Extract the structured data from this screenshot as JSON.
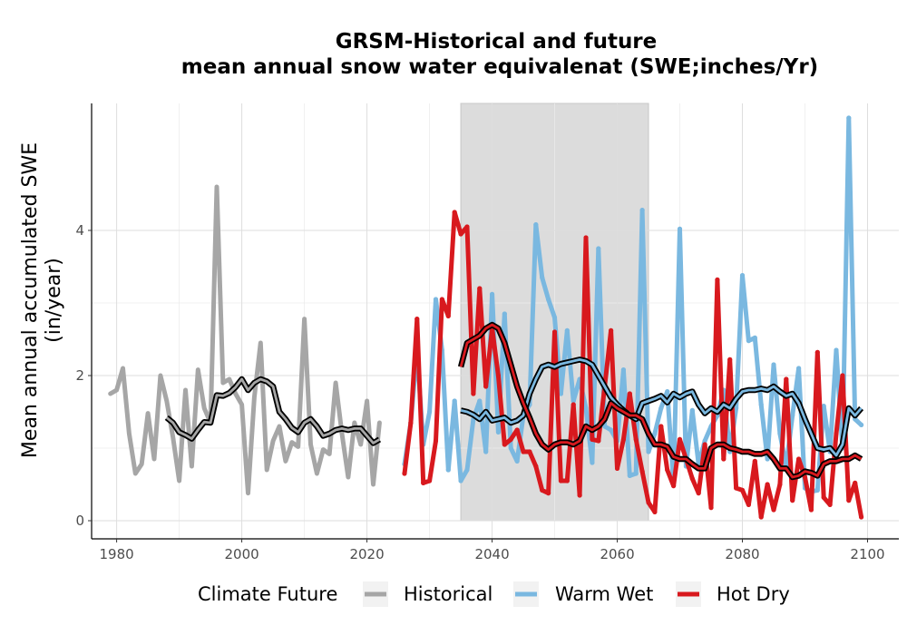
{
  "chart_data": {
    "type": "line",
    "title": "GRSM-Historical and future",
    "subtitle": "mean annual snow water equivalenat (SWE;inches/Yr)",
    "ylabel_line1": "Mean annual accumulated SWE",
    "ylabel_line2": "(in/year)",
    "xlabel": "",
    "xlim": [
      1976,
      2105
    ],
    "ylim": [
      -0.25,
      5.75
    ],
    "x_ticks": [
      1980,
      2000,
      2020,
      2040,
      2060,
      2080,
      2100
    ],
    "y_ticks": [
      0,
      2,
      4
    ],
    "grid": true,
    "shaded_period": [
      2035,
      2065
    ],
    "legend": {
      "title": "Climate Future",
      "position": "bottom",
      "entries": [
        "Historical",
        "Warm Wet",
        "Hot Dry"
      ]
    },
    "series": [
      {
        "name": "Historical",
        "color": "#a6a6a6",
        "x": [
          1979,
          1980,
          1981,
          1982,
          1983,
          1984,
          1985,
          1986,
          1987,
          1988,
          1989,
          1990,
          1991,
          1992,
          1993,
          1994,
          1995,
          1996,
          1997,
          1998,
          1999,
          2000,
          2001,
          2002,
          2003,
          2004,
          2005,
          2006,
          2007,
          2008,
          2009,
          2010,
          2011,
          2012,
          2013,
          2014,
          2015,
          2016,
          2017,
          2018,
          2019,
          2020,
          2021,
          2022
        ],
        "y": [
          1.75,
          1.8,
          2.1,
          1.2,
          0.65,
          0.78,
          1.48,
          0.85,
          2.0,
          1.65,
          1.15,
          0.55,
          1.8,
          0.75,
          2.08,
          1.55,
          1.35,
          4.6,
          1.9,
          1.95,
          1.75,
          1.6,
          0.38,
          1.7,
          2.45,
          0.7,
          1.1,
          1.3,
          0.82,
          1.08,
          1.02,
          2.78,
          1.05,
          0.65,
          0.98,
          0.92,
          1.9,
          1.2,
          0.6,
          1.35,
          1.05,
          1.65,
          0.5,
          1.35
        ],
        "moving_avg": {
          "x": [
            1988,
            1989,
            1990,
            1991,
            1992,
            1993,
            1994,
            1995,
            1996,
            1997,
            1998,
            1999,
            2000,
            2001,
            2002,
            2003,
            2004,
            2005,
            2006,
            2007,
            2008,
            2009,
            2010,
            2011,
            2012,
            2013,
            2014,
            2015,
            2016,
            2017,
            2018,
            2019,
            2020,
            2021,
            2022
          ],
          "y": [
            1.42,
            1.35,
            1.22,
            1.18,
            1.13,
            1.25,
            1.36,
            1.35,
            1.73,
            1.72,
            1.76,
            1.84,
            1.95,
            1.8,
            1.9,
            1.95,
            1.92,
            1.85,
            1.5,
            1.4,
            1.28,
            1.22,
            1.35,
            1.4,
            1.3,
            1.17,
            1.2,
            1.25,
            1.27,
            1.25,
            1.27,
            1.27,
            1.17,
            1.07,
            1.12
          ]
        }
      },
      {
        "name": "Warm Wet",
        "color": "#7ab8e0",
        "x": [
          2026,
          2027,
          2028,
          2029,
          2030,
          2031,
          2032,
          2033,
          2034,
          2035,
          2036,
          2037,
          2038,
          2039,
          2040,
          2041,
          2042,
          2043,
          2044,
          2045,
          2046,
          2047,
          2048,
          2049,
          2050,
          2051,
          2052,
          2053,
          2054,
          2055,
          2056,
          2057,
          2058,
          2059,
          2060,
          2061,
          2062,
          2063,
          2064,
          2065,
          2066,
          2067,
          2068,
          2069,
          2070,
          2071,
          2072,
          2073,
          2074,
          2075,
          2076,
          2077,
          2078,
          2079,
          2080,
          2081,
          2082,
          2083,
          2084,
          2085,
          2086,
          2087,
          2088,
          2089,
          2090,
          2091,
          2092,
          2093,
          2094,
          2095,
          2096,
          2097,
          2098,
          2099
        ],
        "y": [
          0.78,
          1.35,
          2.35,
          1.05,
          1.5,
          3.05,
          2.35,
          0.7,
          1.65,
          0.55,
          0.7,
          1.4,
          1.65,
          0.95,
          3.12,
          1.22,
          2.85,
          1.0,
          0.82,
          1.45,
          1.6,
          4.08,
          3.35,
          3.05,
          2.8,
          1.75,
          2.62,
          1.65,
          1.95,
          1.55,
          0.8,
          3.75,
          1.3,
          1.25,
          1.1,
          2.08,
          0.62,
          0.65,
          4.28,
          0.95,
          1.2,
          1.55,
          1.78,
          0.52,
          4.02,
          0.75,
          1.52,
          0.78,
          1.1,
          1.3,
          1.45,
          1.8,
          0.95,
          1.55,
          3.38,
          2.48,
          2.52,
          1.6,
          0.85,
          2.15,
          1.2,
          0.75,
          1.45,
          2.1,
          0.45,
          0.4,
          0.42,
          1.58,
          0.95,
          2.35,
          1.0,
          5.55,
          1.4,
          1.32
        ],
        "moving_avg": {
          "x": [
            2035,
            2036,
            2037,
            2038,
            2039,
            2040,
            2041,
            2042,
            2043,
            2044,
            2045,
            2046,
            2047,
            2048,
            2049,
            2050,
            2051,
            2052,
            2053,
            2054,
            2055,
            2056,
            2057,
            2058,
            2059,
            2060,
            2061,
            2062,
            2063,
            2064,
            2065,
            2066,
            2067,
            2068,
            2069,
            2070,
            2071,
            2072,
            2073,
            2074,
            2075,
            2076,
            2077,
            2078,
            2079,
            2080,
            2081,
            2082,
            2083,
            2084,
            2085,
            2086,
            2087,
            2088,
            2089,
            2090,
            2091,
            2092,
            2093,
            2094,
            2095,
            2096,
            2097,
            2098,
            2099
          ],
          "y": [
            1.52,
            1.5,
            1.46,
            1.4,
            1.5,
            1.38,
            1.4,
            1.42,
            1.35,
            1.38,
            1.45,
            1.75,
            1.95,
            2.12,
            2.15,
            2.12,
            2.16,
            2.18,
            2.2,
            2.22,
            2.2,
            2.15,
            2.0,
            1.85,
            1.7,
            1.6,
            1.52,
            1.45,
            1.4,
            1.62,
            1.65,
            1.68,
            1.72,
            1.63,
            1.75,
            1.7,
            1.75,
            1.78,
            1.6,
            1.48,
            1.55,
            1.5,
            1.6,
            1.55,
            1.68,
            1.78,
            1.8,
            1.8,
            1.82,
            1.8,
            1.85,
            1.78,
            1.72,
            1.75,
            1.62,
            1.4,
            1.2,
            1.0,
            0.98,
            1.0,
            0.9,
            1.05,
            1.55,
            1.45,
            1.55
          ]
        }
      },
      {
        "name": "Hot Dry",
        "color": "#d8191e",
        "x": [
          2026,
          2027,
          2028,
          2029,
          2030,
          2031,
          2032,
          2033,
          2034,
          2035,
          2036,
          2037,
          2038,
          2039,
          2040,
          2041,
          2042,
          2043,
          2044,
          2045,
          2046,
          2047,
          2048,
          2049,
          2050,
          2051,
          2052,
          2053,
          2054,
          2055,
          2056,
          2057,
          2058,
          2059,
          2060,
          2061,
          2062,
          2063,
          2064,
          2065,
          2066,
          2067,
          2068,
          2069,
          2070,
          2071,
          2072,
          2073,
          2074,
          2075,
          2076,
          2077,
          2078,
          2079,
          2080,
          2081,
          2082,
          2083,
          2084,
          2085,
          2086,
          2087,
          2088,
          2089,
          2090,
          2091,
          2092,
          2093,
          2094,
          2095,
          2096,
          2097,
          2098,
          2099
        ],
        "y": [
          0.65,
          1.35,
          2.78,
          0.52,
          0.55,
          1.1,
          3.05,
          2.82,
          4.25,
          3.95,
          4.05,
          1.75,
          3.2,
          1.85,
          2.65,
          2.0,
          1.05,
          1.12,
          1.25,
          0.95,
          0.95,
          0.75,
          0.42,
          0.38,
          2.6,
          0.55,
          0.55,
          1.6,
          0.35,
          3.9,
          1.12,
          1.1,
          1.85,
          2.62,
          0.72,
          1.12,
          1.75,
          1.12,
          0.68,
          0.25,
          0.12,
          1.3,
          0.7,
          0.48,
          1.12,
          0.85,
          0.58,
          0.38,
          1.05,
          0.18,
          3.32,
          0.85,
          2.22,
          0.45,
          0.42,
          0.22,
          0.82,
          0.05,
          0.5,
          0.15,
          0.5,
          1.95,
          0.28,
          0.85,
          0.6,
          0.15,
          2.32,
          0.32,
          0.22,
          1.2,
          2.0,
          0.28,
          0.52,
          0.05
        ],
        "moving_avg": {
          "x": [
            2035,
            2036,
            2037,
            2038,
            2039,
            2040,
            2041,
            2042,
            2043,
            2044,
            2045,
            2046,
            2047,
            2048,
            2049,
            2050,
            2051,
            2052,
            2053,
            2054,
            2055,
            2056,
            2057,
            2058,
            2059,
            2060,
            2061,
            2062,
            2063,
            2064,
            2065,
            2066,
            2067,
            2068,
            2069,
            2070,
            2071,
            2072,
            2073,
            2074,
            2075,
            2076,
            2077,
            2078,
            2079,
            2080,
            2081,
            2082,
            2083,
            2084,
            2085,
            2086,
            2087,
            2088,
            2089,
            2090,
            2091,
            2092,
            2093,
            2094,
            2095,
            2096,
            2097,
            2098,
            2099
          ],
          "y": [
            2.12,
            2.45,
            2.5,
            2.55,
            2.65,
            2.7,
            2.65,
            2.45,
            2.15,
            1.85,
            1.62,
            1.42,
            1.2,
            1.05,
            0.98,
            1.05,
            1.08,
            1.08,
            1.05,
            1.1,
            1.3,
            1.25,
            1.3,
            1.4,
            1.62,
            1.55,
            1.5,
            1.45,
            1.45,
            1.4,
            1.2,
            1.05,
            1.05,
            1.02,
            0.88,
            0.85,
            0.85,
            0.78,
            0.72,
            0.72,
            1.0,
            1.05,
            1.05,
            1.0,
            0.98,
            0.95,
            0.95,
            0.92,
            0.92,
            0.95,
            0.85,
            0.72,
            0.72,
            0.6,
            0.62,
            0.68,
            0.66,
            0.62,
            0.78,
            0.82,
            0.82,
            0.85,
            0.85,
            0.9,
            0.85
          ]
        }
      }
    ]
  }
}
